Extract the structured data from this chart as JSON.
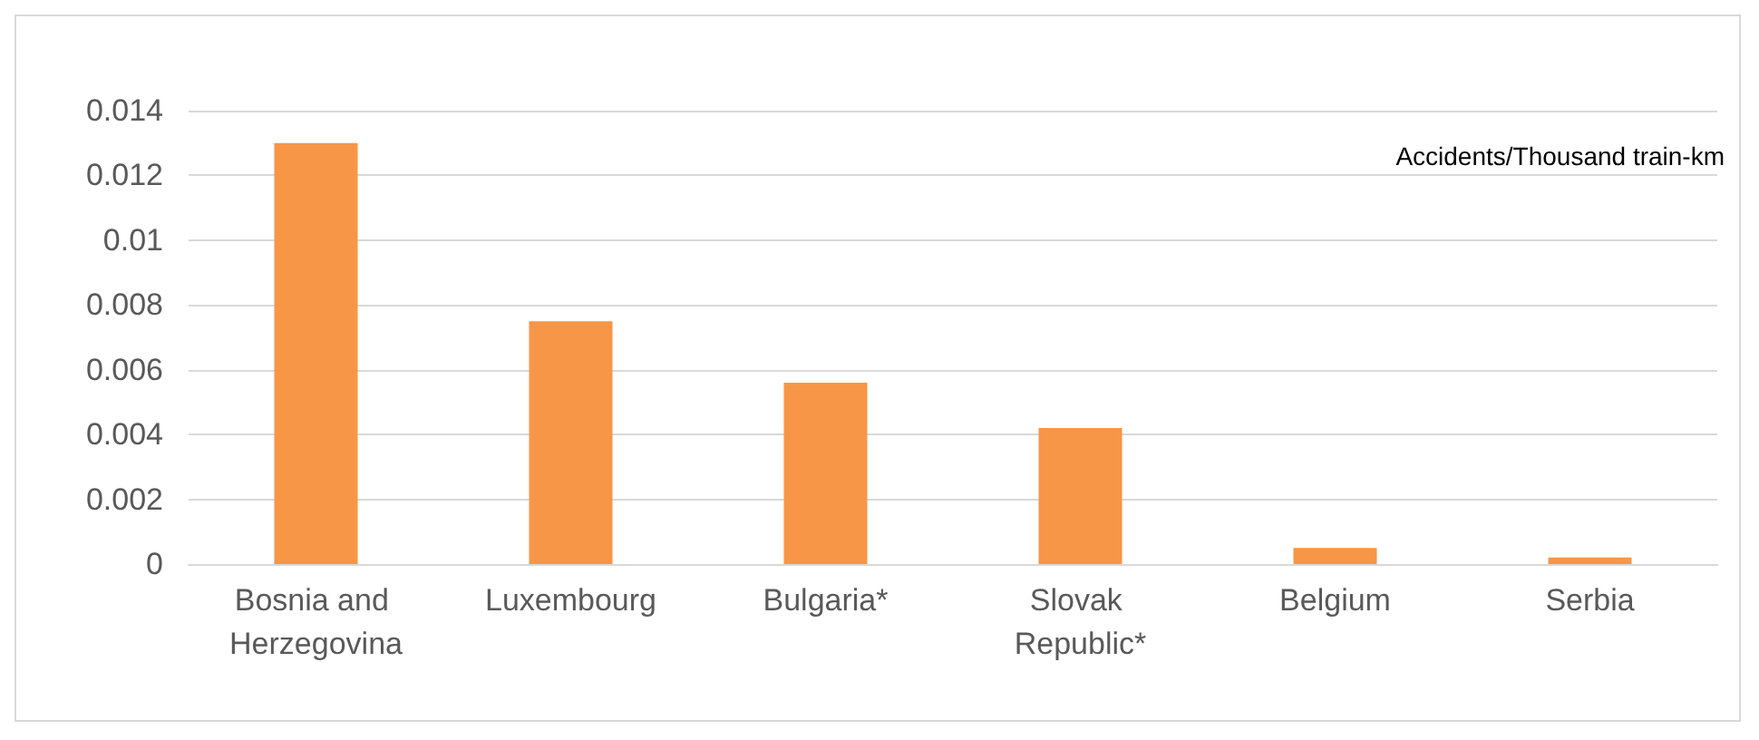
{
  "chart_data": {
    "type": "bar",
    "categories": [
      "Bosnia and Herzegovina",
      "Luxembourg",
      "Bulgaria*",
      "Slovak Republic*",
      "Belgium",
      "Serbia"
    ],
    "values": [
      0.013,
      0.0075,
      0.0056,
      0.0042,
      0.0005,
      0.0002
    ],
    "color": "#f79646",
    "ylim": [
      0,
      0.014
    ],
    "yticks": [
      0,
      0.002,
      0.004,
      0.006,
      0.008,
      0.01,
      0.012,
      0.014
    ],
    "grid": true,
    "annotations": [
      "Accidents/Thousand train-km"
    ]
  }
}
